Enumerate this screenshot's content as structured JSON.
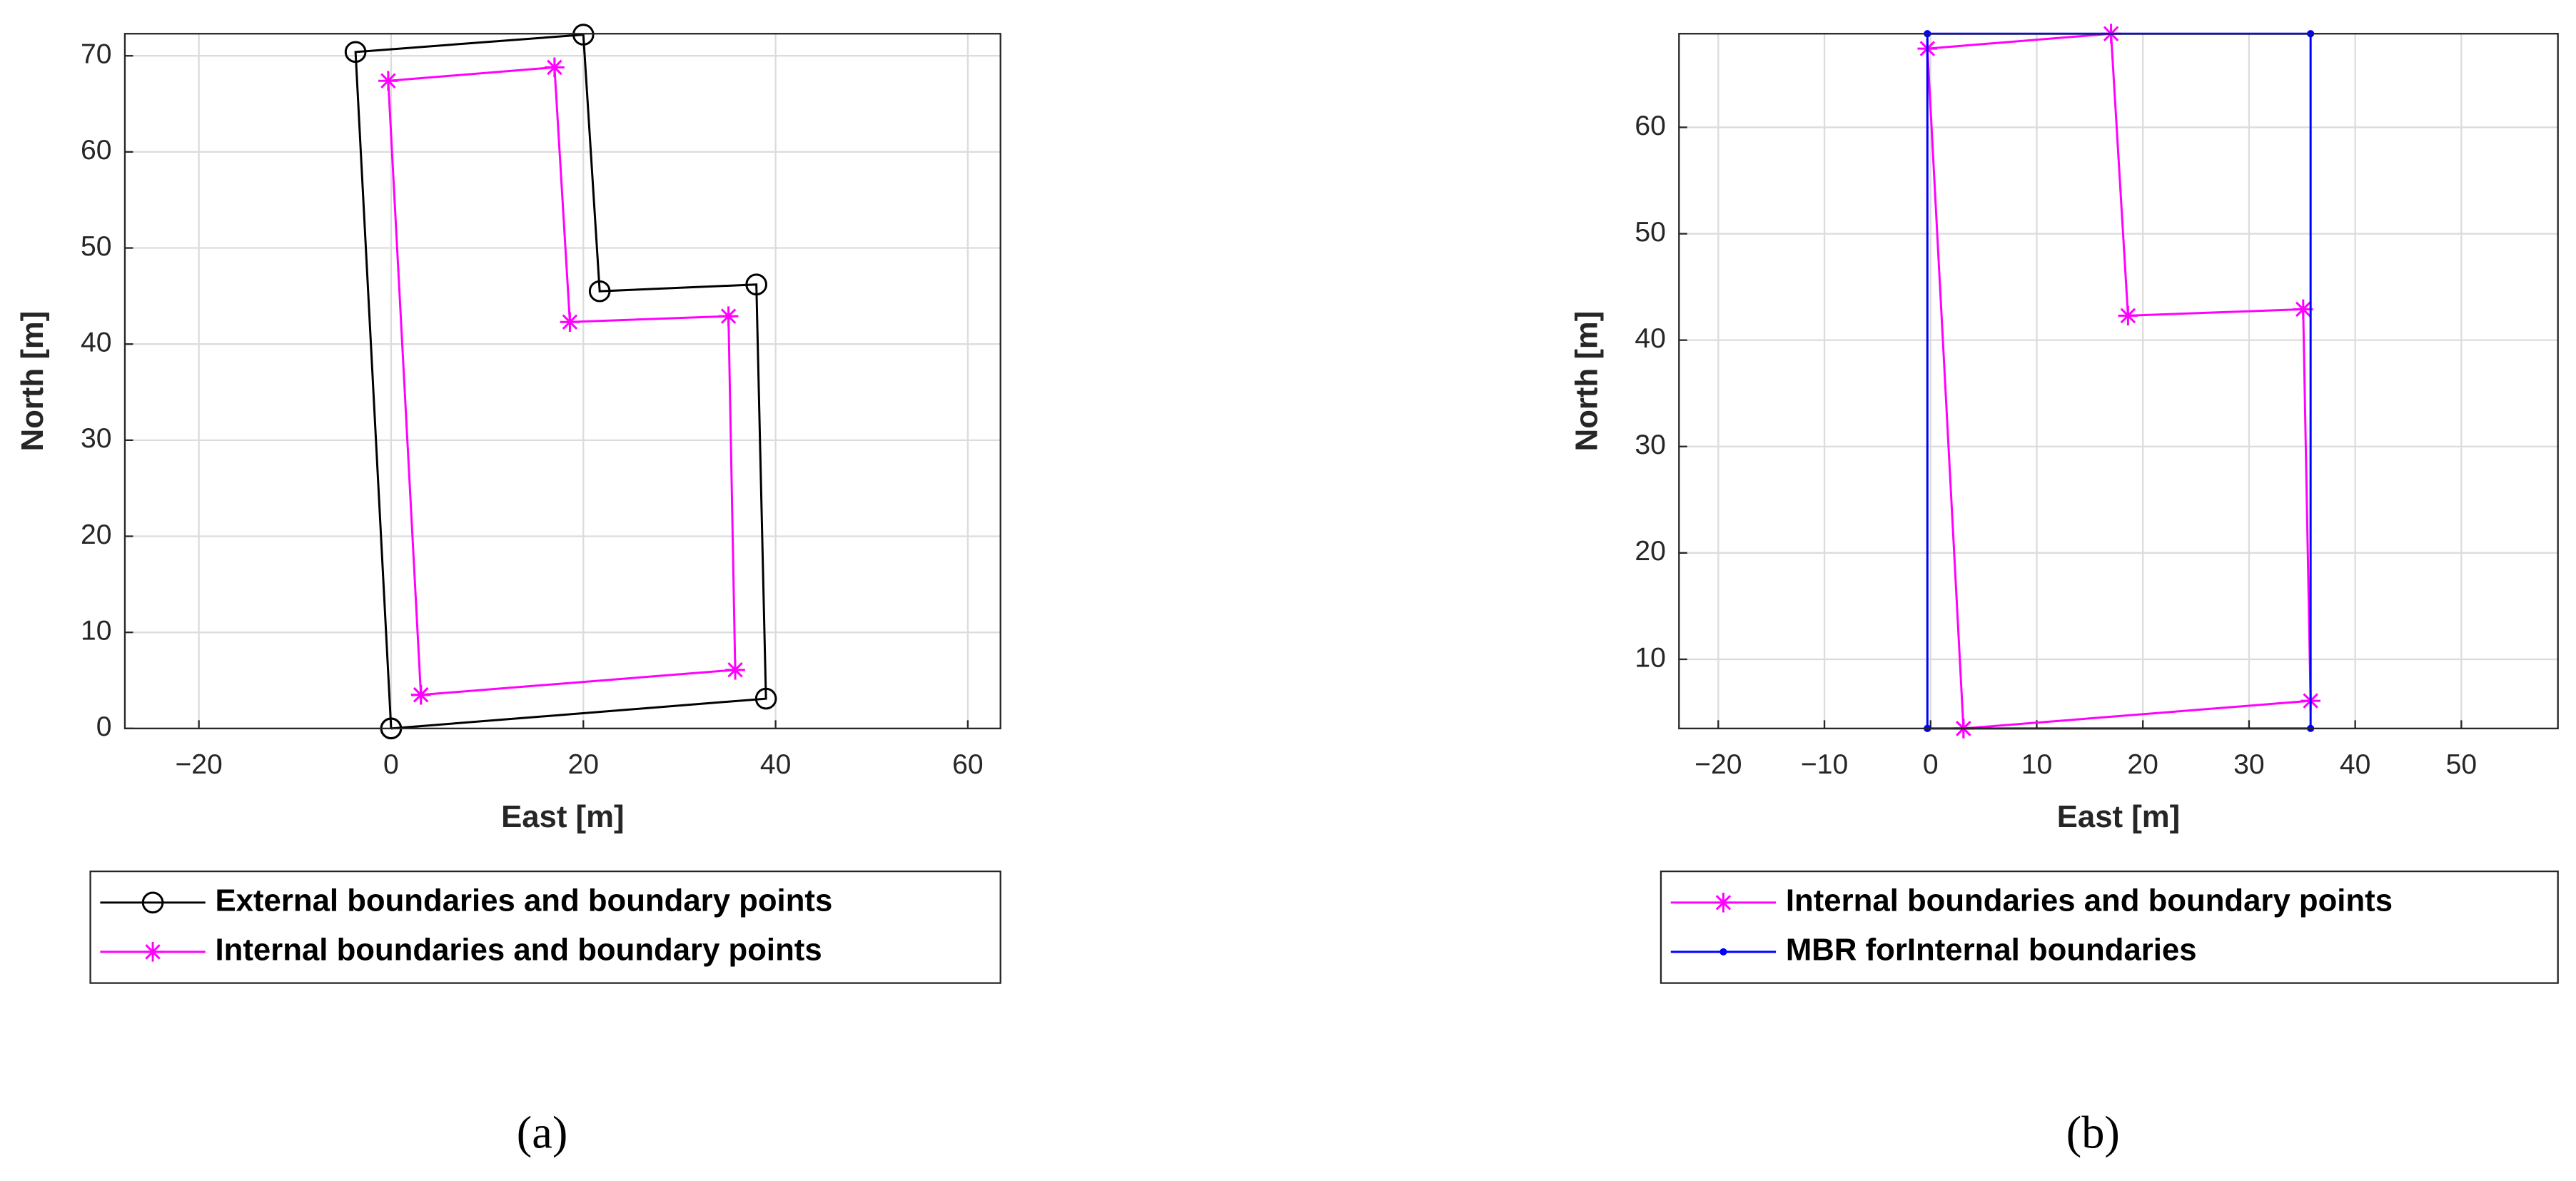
{
  "chart_data": [
    {
      "type": "line",
      "caption": "(a)",
      "xlabel": "East [m]",
      "ylabel": "North [m]",
      "xlim": [
        -27.7,
        63.4
      ],
      "ylim": [
        0,
        72.3
      ],
      "xticks": [
        {
          "value": -20,
          "label": "−20"
        },
        0,
        20,
        40,
        60
      ],
      "yticks": [
        0,
        10,
        20,
        30,
        40,
        50,
        60,
        70
      ],
      "grid": true,
      "series": [
        {
          "name": "External boundaries and boundary points",
          "color": "#000000",
          "marker": "circle",
          "x": [
            0,
            39,
            38,
            21.7,
            20,
            -3.7,
            0
          ],
          "y": [
            0,
            3.1,
            46.2,
            45.5,
            72.2,
            70.4,
            0
          ]
        },
        {
          "name": "Internal boundaries and boundary points",
          "color": "#ff00ff",
          "marker": "star",
          "x": [
            3.1,
            35.8,
            35.1,
            18.6,
            17,
            -0.3,
            3.1
          ],
          "y": [
            3.5,
            6.1,
            42.9,
            42.3,
            68.8,
            67.4,
            3.5
          ]
        }
      ]
    },
    {
      "type": "line",
      "caption": "(b)",
      "xlabel": "East [m]",
      "ylabel": "North [m]",
      "xlim": [
        -23.7,
        59.1
      ],
      "ylim": [
        3.5,
        68.8
      ],
      "xticks": [
        {
          "value": -20,
          "label": "−20"
        },
        {
          "value": -10,
          "label": "−10"
        },
        0,
        10,
        20,
        30,
        40,
        50
      ],
      "yticks": [
        10,
        20,
        30,
        40,
        50,
        60
      ],
      "grid": true,
      "series": [
        {
          "name": "Internal boundaries and boundary points",
          "color": "#ff00ff",
          "marker": "star",
          "x": [
            3.1,
            35.8,
            35.1,
            18.6,
            17,
            -0.3,
            3.1
          ],
          "y": [
            3.5,
            6.1,
            42.9,
            42.3,
            68.8,
            67.4,
            3.5
          ]
        },
        {
          "name": "MBR forInternal boundaries",
          "color": "#0000ff",
          "marker": "dot",
          "x": [
            -0.3,
            35.8,
            35.8,
            -0.3,
            -0.3
          ],
          "y": [
            3.5,
            3.5,
            68.8,
            68.8,
            3.5
          ]
        }
      ]
    }
  ]
}
